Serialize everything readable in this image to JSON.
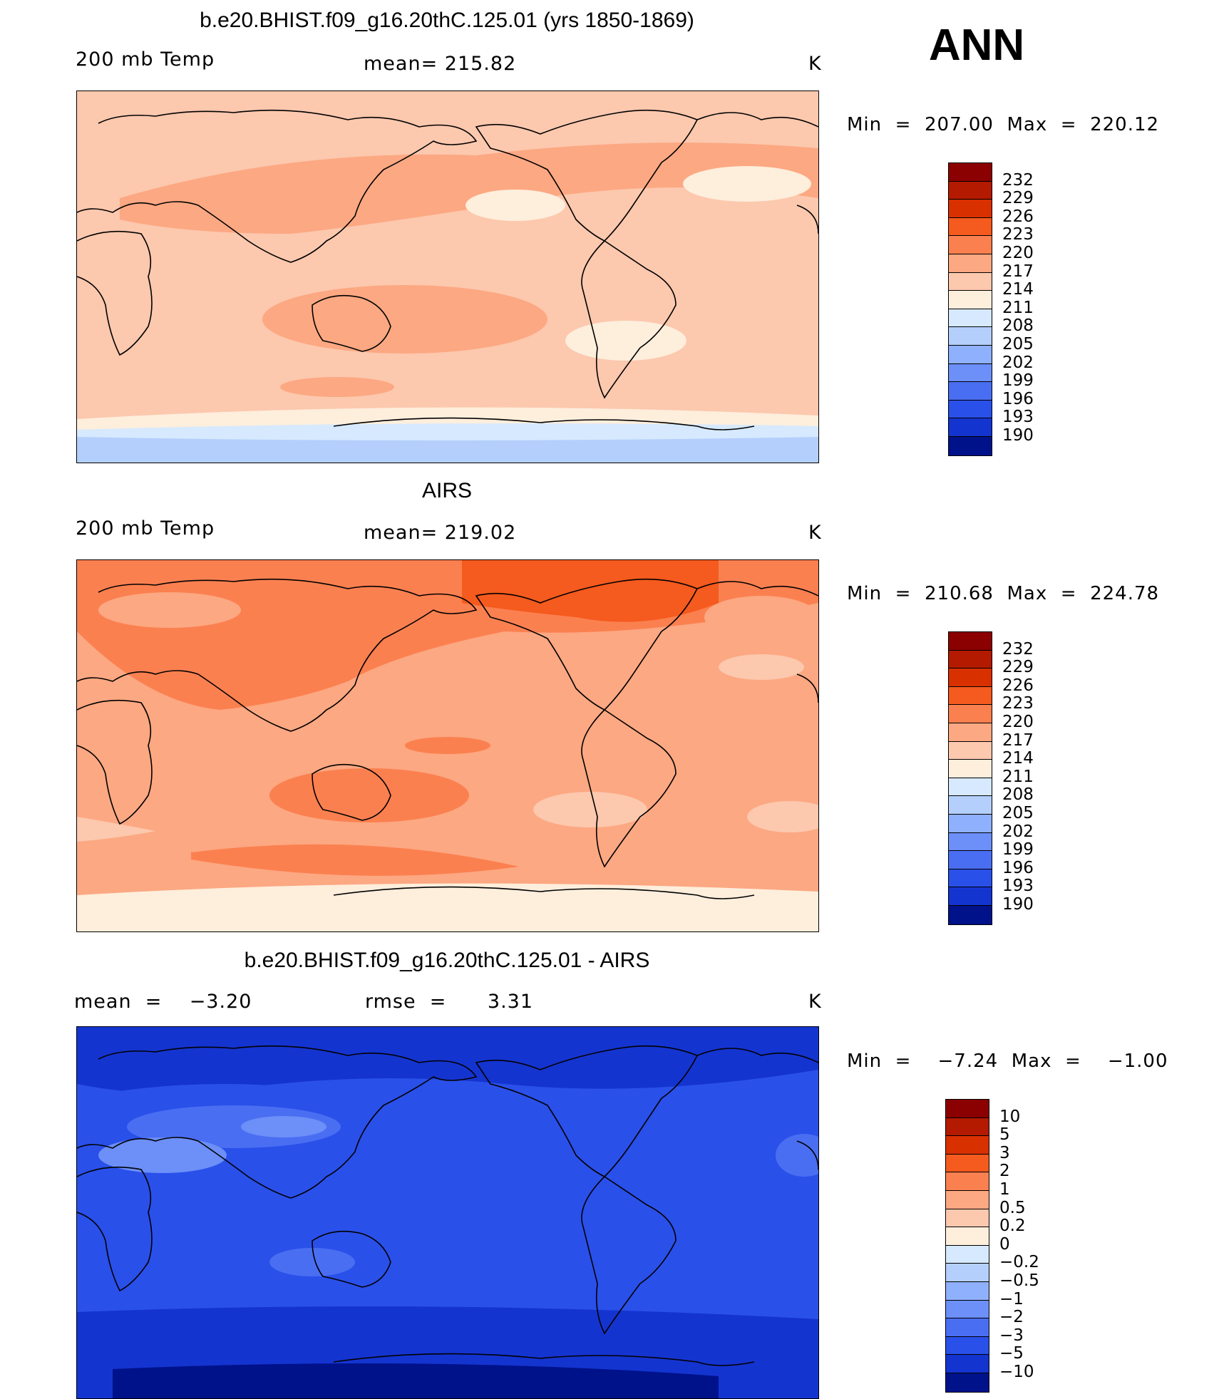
{
  "season": "ANN",
  "panels": [
    {
      "title": "b.e20.BHIST.f09_g16.20thC.125.01 (yrs 1850-1869)",
      "left_label": "200 mb Temp",
      "center_label": "mean= 215.82",
      "right_label": "K",
      "minmax": "Min  =  207.00  Max  =  220.12",
      "base_color": "#fcc8ae",
      "colorbar": {
        "labels": [
          "232",
          "229",
          "226",
          "223",
          "220",
          "217",
          "214",
          "211",
          "208",
          "205",
          "202",
          "199",
          "196",
          "193",
          "190"
        ],
        "colors": [
          "#8b0000",
          "#b31a00",
          "#d93000",
          "#f55a1e",
          "#fb8050",
          "#fca882",
          "#fcc8ae",
          "#feeedc",
          "#d6e9fe",
          "#b4cffc",
          "#8fb0fc",
          "#6c8ff8",
          "#4a6ef2",
          "#2a50ea",
          "#1434d0",
          "#00128a"
        ]
      }
    },
    {
      "title": "AIRS",
      "left_label": "200 mb Temp",
      "center_label": "mean= 219.02",
      "right_label": "K",
      "minmax": "Min  =  210.68  Max  =  224.78",
      "base_color": "#fca882",
      "colorbar": {
        "labels": [
          "232",
          "229",
          "226",
          "223",
          "220",
          "217",
          "214",
          "211",
          "208",
          "205",
          "202",
          "199",
          "196",
          "193",
          "190"
        ],
        "colors": [
          "#8b0000",
          "#b31a00",
          "#d93000",
          "#f55a1e",
          "#fb8050",
          "#fca882",
          "#fcc8ae",
          "#feeedc",
          "#d6e9fe",
          "#b4cffc",
          "#8fb0fc",
          "#6c8ff8",
          "#4a6ef2",
          "#2a50ea",
          "#1434d0",
          "#00128a"
        ]
      }
    },
    {
      "title": "b.e20.BHIST.f09_g16.20thC.125.01 - AIRS",
      "left_label": "mean  =    −3.20",
      "center_label": "rmse  =      3.31",
      "right_label": "K",
      "minmax": "Min  =    −7.24  Max  =    −1.00",
      "base_color": "#2a50ea",
      "colorbar": {
        "labels": [
          "10",
          "5",
          "3",
          "2",
          "1",
          "0.5",
          "0.2",
          "0",
          "−0.2",
          "−0.5",
          "−1",
          "−2",
          "−3",
          "−5",
          "−10"
        ],
        "colors": [
          "#8b0000",
          "#b31a00",
          "#d93000",
          "#f55a1e",
          "#fb8050",
          "#fca882",
          "#fcc8ae",
          "#feeedc",
          "#d6e9fe",
          "#b4cffc",
          "#8fb0fc",
          "#6c8ff8",
          "#4a6ef2",
          "#2a50ea",
          "#1434d0",
          "#00128a"
        ]
      }
    }
  ]
}
